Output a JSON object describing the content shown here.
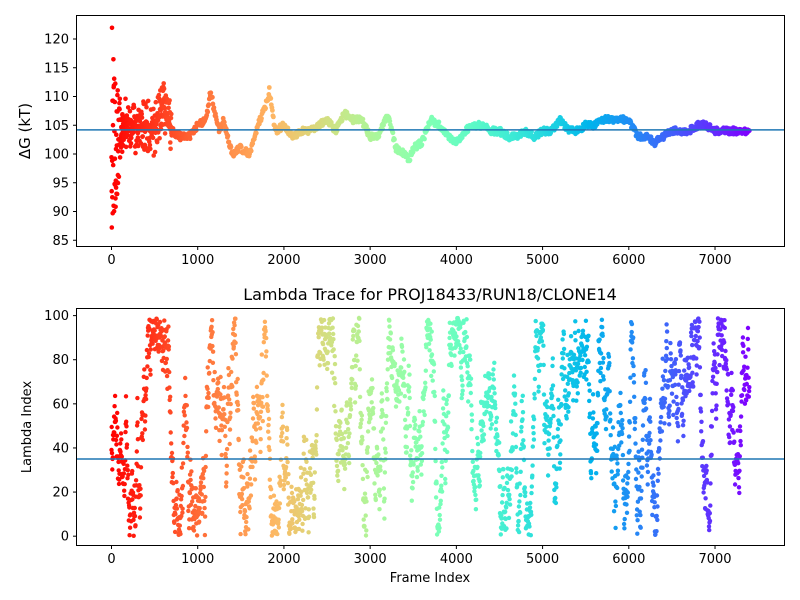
{
  "chart_data": [
    {
      "type": "scatter",
      "title": "",
      "xlabel": "",
      "ylabel": "ΔG (kT)",
      "xlim": [
        -400,
        7800
      ],
      "ylim": [
        84,
        124
      ],
      "xticks": [
        0,
        1000,
        2000,
        3000,
        4000,
        5000,
        6000,
        7000
      ],
      "yticks": [
        85,
        90,
        95,
        100,
        105,
        110,
        115,
        120
      ],
      "hline": 104.2,
      "hline_color": "#1f77b4",
      "colormap": "rainbow (early frames red → late frames violet)",
      "grid": false,
      "x_range": [
        0,
        7400
      ],
      "trace_keypoints": [
        [
          0,
          100
        ],
        [
          40,
          110
        ],
        [
          100,
          104
        ],
        [
          200,
          106
        ],
        [
          300,
          104
        ],
        [
          400,
          105
        ],
        [
          500,
          104
        ],
        [
          600,
          109
        ],
        [
          700,
          104
        ],
        [
          800,
          103
        ],
        [
          900,
          103
        ],
        [
          1000,
          105
        ],
        [
          1100,
          106
        ],
        [
          1150,
          111
        ],
        [
          1200,
          107
        ],
        [
          1250,
          104
        ],
        [
          1300,
          106
        ],
        [
          1400,
          100
        ],
        [
          1500,
          101
        ],
        [
          1600,
          100
        ],
        [
          1700,
          105
        ],
        [
          1800,
          109
        ],
        [
          1830,
          111
        ],
        [
          1900,
          104
        ],
        [
          2000,
          105
        ],
        [
          2100,
          103
        ],
        [
          2200,
          104
        ],
        [
          2300,
          104
        ],
        [
          2400,
          105
        ],
        [
          2500,
          106
        ],
        [
          2600,
          104
        ],
        [
          2700,
          107
        ],
        [
          2800,
          106
        ],
        [
          2900,
          106
        ],
        [
          3000,
          103
        ],
        [
          3100,
          103
        ],
        [
          3200,
          107
        ],
        [
          3300,
          101
        ],
        [
          3400,
          100
        ],
        [
          3450,
          99
        ],
        [
          3500,
          101
        ],
        [
          3600,
          102
        ],
        [
          3700,
          106
        ],
        [
          3800,
          105
        ],
        [
          3900,
          103
        ],
        [
          4000,
          102
        ],
        [
          4100,
          104
        ],
        [
          4200,
          105
        ],
        [
          4300,
          105
        ],
        [
          4400,
          104
        ],
        [
          4500,
          104
        ],
        [
          4600,
          103
        ],
        [
          4700,
          103
        ],
        [
          4800,
          104
        ],
        [
          4900,
          103
        ],
        [
          5000,
          104
        ],
        [
          5100,
          104
        ],
        [
          5200,
          106
        ],
        [
          5300,
          104
        ],
        [
          5400,
          104
        ],
        [
          5500,
          105
        ],
        [
          5600,
          105
        ],
        [
          5700,
          106
        ],
        [
          5800,
          106
        ],
        [
          5900,
          106
        ],
        [
          6000,
          106
        ],
        [
          6100,
          103
        ],
        [
          6200,
          103
        ],
        [
          6300,
          102
        ],
        [
          6400,
          103
        ],
        [
          6500,
          104
        ],
        [
          6600,
          104
        ],
        [
          6700,
          104
        ],
        [
          6800,
          105
        ],
        [
          6900,
          105
        ],
        [
          7000,
          104
        ],
        [
          7100,
          104
        ],
        [
          7200,
          104
        ],
        [
          7300,
          104
        ],
        [
          7400,
          104
        ]
      ],
      "early_scatter_range": [
        85,
        122
      ]
    },
    {
      "type": "scatter",
      "title": "Lambda Trace for PROJ18433/RUN18/CLONE14",
      "xlabel": "Frame Index",
      "ylabel": "Lambda Index",
      "xlim": [
        -400,
        7800
      ],
      "ylim": [
        -4,
        103
      ],
      "xticks": [
        0,
        1000,
        2000,
        3000,
        4000,
        5000,
        6000,
        7000
      ],
      "yticks": [
        0,
        20,
        40,
        60,
        80,
        100
      ],
      "hline": 35,
      "hline_color": "#1f77b4",
      "colormap": "rainbow (early frames red → late frames violet)",
      "grid": false,
      "x_range": [
        0,
        7400
      ],
      "lambda_range": [
        0,
        99
      ]
    }
  ]
}
